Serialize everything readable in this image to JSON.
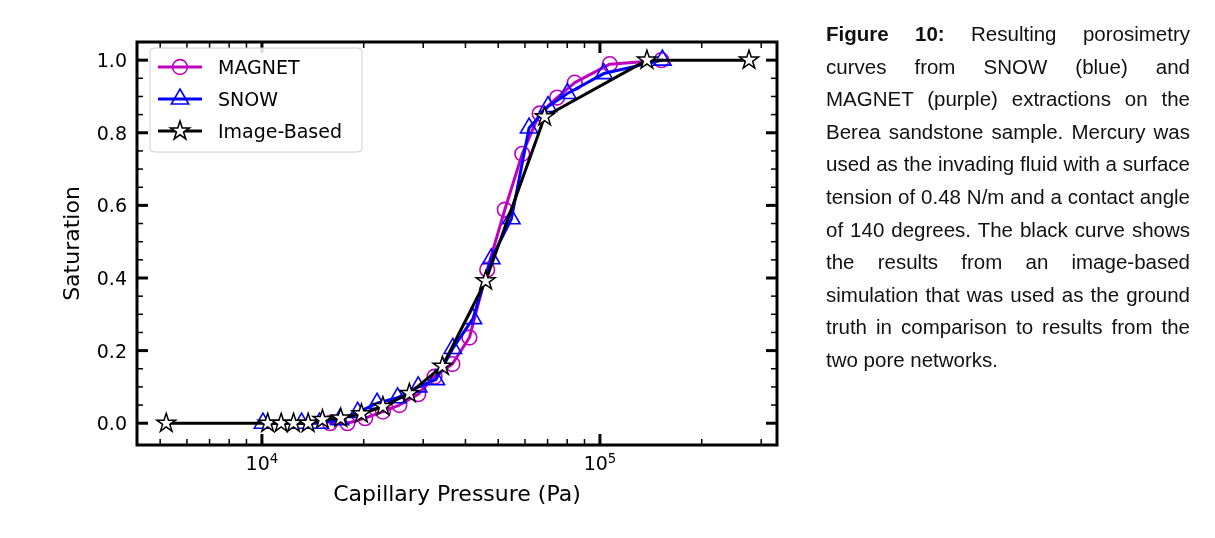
{
  "chart_data": {
    "type": "line",
    "xlabel": "Capillary Pressure (Pa)",
    "ylabel": "Saturation",
    "log": "x",
    "xlim": [
      4270,
      334000
    ],
    "ylim": [
      -0.06,
      1.05
    ],
    "xticks": [
      {
        "value": 5000,
        "label": null
      },
      {
        "value": 6000,
        "label": null
      },
      {
        "value": 7000,
        "label": null
      },
      {
        "value": 8000,
        "label": null
      },
      {
        "value": 9000,
        "label": null
      },
      {
        "value": 10000,
        "label": "10$^{4}$"
      },
      {
        "value": 20000,
        "label": null
      },
      {
        "value": 30000,
        "label": null
      },
      {
        "value": 40000,
        "label": null
      },
      {
        "value": 50000,
        "label": null
      },
      {
        "value": 60000,
        "label": null
      },
      {
        "value": 70000,
        "label": null
      },
      {
        "value": 80000,
        "label": null
      },
      {
        "value": 90000,
        "label": null
      },
      {
        "value": 100000,
        "label": "10$^{5}$"
      },
      {
        "value": 200000,
        "label": null
      },
      {
        "value": 300000,
        "label": null
      }
    ],
    "yticks": [
      {
        "value": 0,
        "label": "0.0"
      },
      {
        "value": 0.2,
        "label": "0.2"
      },
      {
        "value": 0.4,
        "label": "0.4"
      },
      {
        "value": 0.6,
        "label": "0.6"
      },
      {
        "value": 0.8,
        "label": "0.8"
      },
      {
        "value": 1,
        "label": "1.0"
      }
    ],
    "grid": false,
    "legend": "top left",
    "line_style": "solid",
    "series": [
      {
        "name": "MAGNET",
        "color": "#bf00bf",
        "marker": "circle",
        "x": [
          15900,
          17900,
          20200,
          22800,
          25500,
          29000,
          32400,
          36600,
          41100,
          46400,
          52300,
          58900,
          66300,
          74700,
          84200,
          106900,
          152000
        ],
        "values": [
          0,
          0,
          0.014,
          0.032,
          0.05,
          0.08,
          0.128,
          0.163,
          0.236,
          0.423,
          0.588,
          0.742,
          0.853,
          0.897,
          0.938,
          0.989,
          1.0
        ]
      },
      {
        "name": "SNOW",
        "color": "#0000ff",
        "marker": "triangle",
        "x": [
          10070,
          13100,
          14800,
          17000,
          19200,
          21900,
          25200,
          29000,
          32700,
          36700,
          42100,
          47700,
          54700,
          61700,
          70200,
          80100,
          102600,
          153000
        ],
        "values": [
          0,
          0,
          0,
          0.01,
          0.03,
          0.055,
          0.07,
          0.1,
          0.12,
          0.206,
          0.288,
          0.453,
          0.563,
          0.813,
          0.872,
          0.908,
          0.963,
          1.0
        ]
      },
      {
        "name": "Image-Based",
        "color": "#000000",
        "marker": "star",
        "x": [
          5210,
          10400,
          11400,
          12400,
          13700,
          15100,
          17100,
          19700,
          22800,
          27300,
          34200,
          45900,
          68600,
          137700,
          276000
        ],
        "values": [
          0,
          0,
          0,
          0,
          0,
          0.01,
          0.014,
          0.026,
          0.046,
          0.082,
          0.157,
          0.392,
          0.844,
          1.0,
          1.0
        ]
      }
    ],
    "annotations": [
      "Figure 10:",
      "Resulting porosimetry curves from SNOW (blue) and MAGNET (purple) extractions on the Berea sandstone sample.  Mercury was used as the invading fluid with a surface tension of 0.48 N/m and a contact angle of 140 degrees. The black curve shows the results from an image-based simulation that was used as the ground truth in comparison to results from the two pore networks."
    ]
  }
}
